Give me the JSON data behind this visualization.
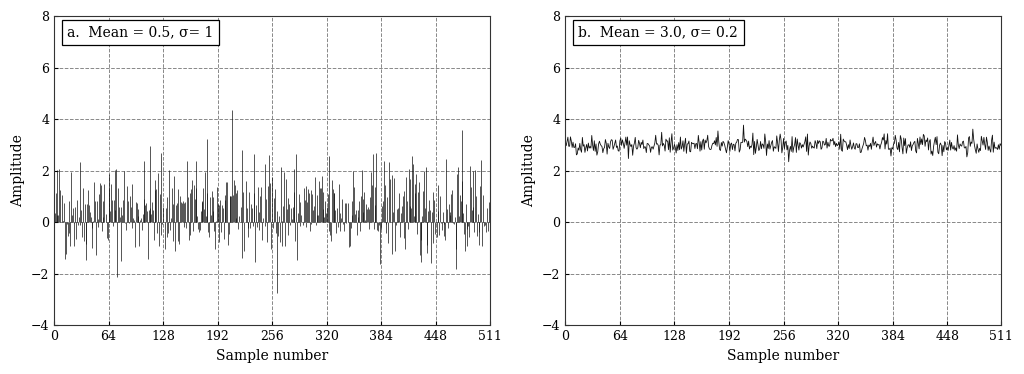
{
  "plot_a": {
    "mean": 0.5,
    "std": 1.0,
    "label": "a.  Mean = 0.5, σ= 1",
    "seed": 42
  },
  "plot_b": {
    "mean": 3.0,
    "std": 0.2,
    "label": "b.  Mean = 3.0, σ= 0.2",
    "seed": 42
  },
  "n_samples": 512,
  "xlim": [
    0,
    511
  ],
  "ylim": [
    -4,
    8
  ],
  "yticks": [
    -4,
    -2,
    0,
    2,
    4,
    6,
    8
  ],
  "xticks": [
    0,
    64,
    128,
    192,
    256,
    320,
    384,
    448,
    511
  ],
  "xlabel": "Sample number",
  "ylabel": "Amplitude",
  "bg_color": "#ffffff",
  "signal_color": "#111111",
  "grid_color": "#555555",
  "box_color": "#ffffff"
}
